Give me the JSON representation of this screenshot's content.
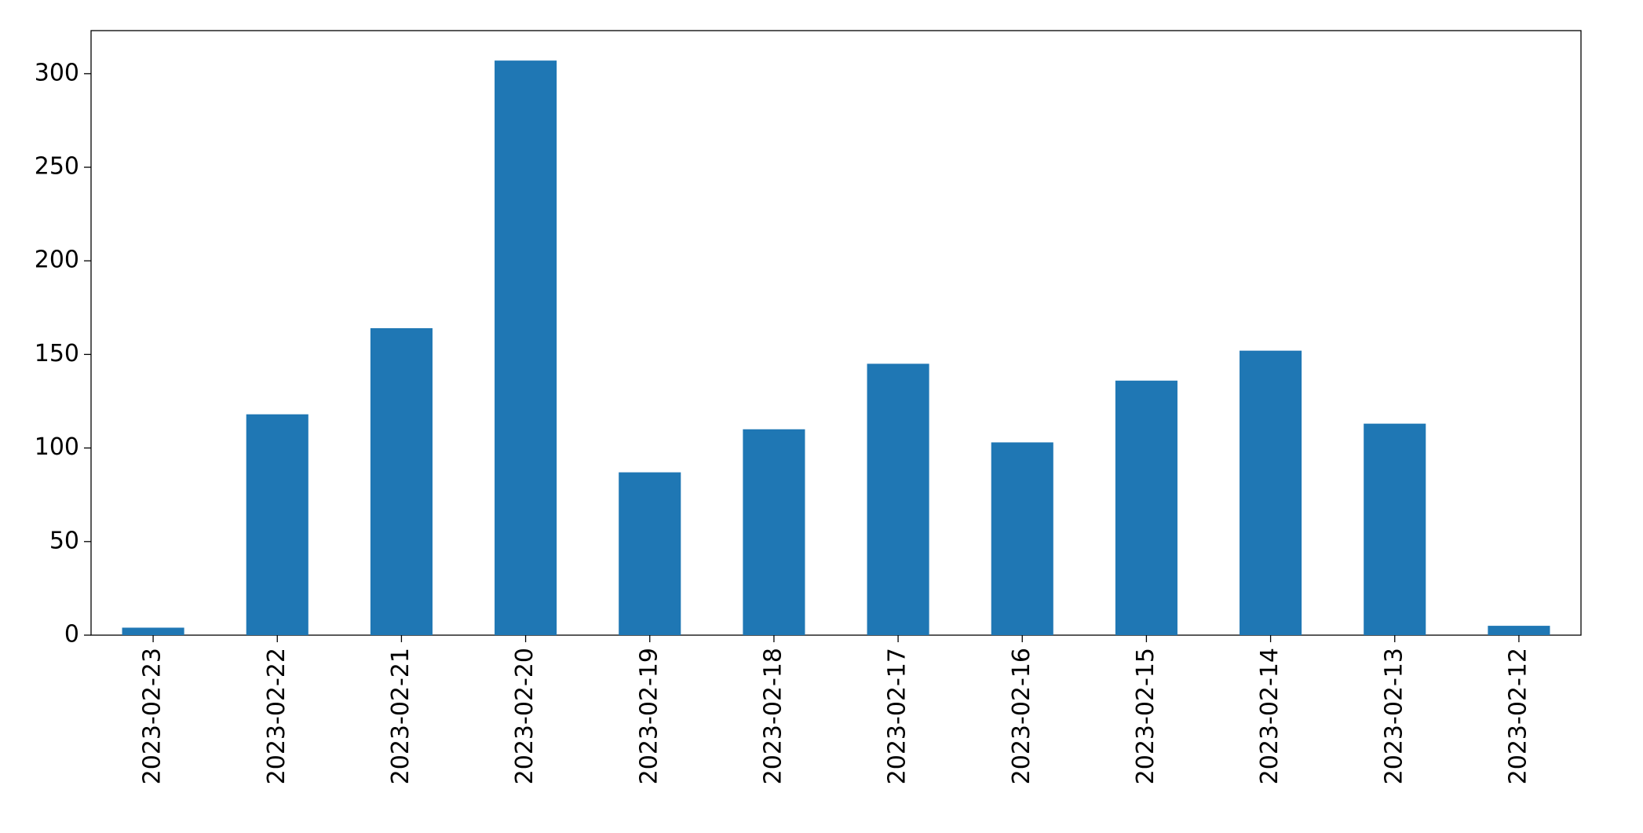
{
  "chart_data": {
    "type": "bar",
    "categories": [
      "2023-02-23",
      "2023-02-22",
      "2023-02-21",
      "2023-02-20",
      "2023-02-19",
      "2023-02-18",
      "2023-02-17",
      "2023-02-16",
      "2023-02-15",
      "2023-02-14",
      "2023-02-13",
      "2023-02-12"
    ],
    "values": [
      4,
      118,
      164,
      307,
      87,
      110,
      145,
      103,
      136,
      152,
      113,
      5
    ],
    "color": "#1f77b4",
    "ylim": [
      0,
      323
    ],
    "yticks": [
      0,
      50,
      100,
      150,
      200,
      250,
      300
    ],
    "grid": false
  }
}
